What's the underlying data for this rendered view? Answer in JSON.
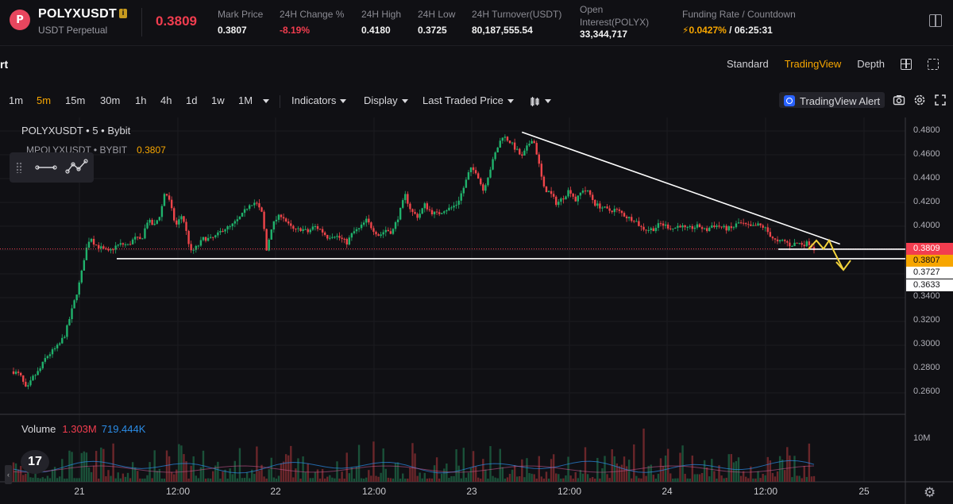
{
  "ticker": {
    "logo_letter": "P",
    "symbol": "POLYXUSDT",
    "contract_type": "USDT Perpetual",
    "last_price": "0.3809",
    "stats": [
      {
        "label": "Mark Price",
        "value": "0.3807",
        "style": "white"
      },
      {
        "label": "24H Change %",
        "value": "-8.19%",
        "style": "red"
      },
      {
        "label": "24H High",
        "value": "0.4180",
        "style": "white"
      },
      {
        "label": "24H Low",
        "value": "0.3725",
        "style": "white"
      },
      {
        "label": "24H Turnover(USDT)",
        "value": "80,187,555.54",
        "style": "white"
      }
    ],
    "open_interest_label_1": "Open",
    "open_interest_label_2": "Interest(POLYX)",
    "open_interest_value": "33,344,717",
    "funding_label": "Funding Rate / Countdown",
    "funding_rate": "0.0427%",
    "funding_countdown": "/ 06:25:31"
  },
  "chart_header": {
    "title_partial": "rt",
    "tabs": [
      "Standard",
      "TradingView",
      "Depth"
    ],
    "active_tab": "TradingView"
  },
  "toolbar": {
    "timeframes": [
      "1m",
      "5m",
      "15m",
      "30m",
      "1h",
      "4h",
      "1d",
      "1w",
      "1M"
    ],
    "active_timeframe": "5m",
    "indicators": "Indicators",
    "display": "Display",
    "price_source": "Last Traded Price",
    "alert_label": "TradingView Alert"
  },
  "legend": {
    "line1": "POLYXUSDT • 5 • Bybit",
    "line2_symbol": "MPOLYXUSDT • BYBIT",
    "line2_price": "0.3807"
  },
  "volume": {
    "label": "Volume",
    "value_red": "1.303M",
    "value_blue": "719.444K",
    "axis_label": "10M"
  },
  "price_axis": {
    "ticks": [
      "0.4800",
      "0.4600",
      "0.4400",
      "0.4200",
      "0.4000",
      "0.3400",
      "0.3200",
      "0.3000",
      "0.2800",
      "0.2600"
    ],
    "tags": [
      {
        "label": "0.3809",
        "bg": "#f23d4f",
        "fg": "#ffffff"
      },
      {
        "label": "0.3807",
        "bg": "#f7a600",
        "fg": "#101014"
      },
      {
        "label": "0.3727",
        "bg": "#ffffff",
        "fg": "#101014"
      },
      {
        "label": "0.3633",
        "bg": "#ffffff",
        "fg": "#101014"
      }
    ]
  },
  "time_axis": {
    "ticks": [
      "21",
      "12:00",
      "22",
      "12:00",
      "23",
      "12:00",
      "24",
      "12:00",
      "25"
    ]
  },
  "chart_data": {
    "type": "candlestick",
    "series": [
      {
        "name": "POLYXUSDT",
        "interval": "5",
        "exchange": "Bybit"
      }
    ],
    "ylim": [
      0.25,
      0.49
    ],
    "x_range": [
      "20",
      "25"
    ],
    "path": [
      [
        0.0,
        0.278
      ],
      [
        0.03,
        0.275
      ],
      [
        0.06,
        0.262
      ],
      [
        0.09,
        0.273
      ],
      [
        0.12,
        0.279
      ],
      [
        0.15,
        0.29
      ],
      [
        0.18,
        0.295
      ],
      [
        0.21,
        0.3
      ],
      [
        0.24,
        0.31
      ],
      [
        0.28,
        0.336
      ],
      [
        0.31,
        0.356
      ],
      [
        0.33,
        0.377
      ],
      [
        0.355,
        0.392
      ],
      [
        0.375,
        0.385
      ],
      [
        0.41,
        0.381
      ],
      [
        0.44,
        0.378
      ],
      [
        0.47,
        0.383
      ],
      [
        0.5,
        0.385
      ],
      [
        0.53,
        0.384
      ],
      [
        0.56,
        0.39
      ],
      [
        0.59,
        0.388
      ],
      [
        0.62,
        0.405
      ],
      [
        0.65,
        0.4
      ],
      [
        0.68,
        0.411
      ],
      [
        0.7,
        0.43
      ],
      [
        0.72,
        0.421
      ],
      [
        0.75,
        0.4
      ],
      [
        0.78,
        0.41
      ],
      [
        0.8,
        0.394
      ],
      [
        0.82,
        0.378
      ],
      [
        0.85,
        0.383
      ],
      [
        0.88,
        0.39
      ],
      [
        0.91,
        0.389
      ],
      [
        0.94,
        0.392
      ],
      [
        0.97,
        0.398
      ],
      [
        1.0,
        0.399
      ],
      [
        1.03,
        0.404
      ],
      [
        1.06,
        0.41
      ],
      [
        1.09,
        0.419
      ],
      [
        1.12,
        0.42
      ],
      [
        1.15,
        0.41
      ],
      [
        1.17,
        0.379
      ],
      [
        1.19,
        0.398
      ],
      [
        1.21,
        0.405
      ],
      [
        1.24,
        0.41
      ],
      [
        1.27,
        0.401
      ],
      [
        1.3,
        0.396
      ],
      [
        1.33,
        0.398
      ],
      [
        1.36,
        0.395
      ],
      [
        1.39,
        0.4
      ],
      [
        1.42,
        0.397
      ],
      [
        1.45,
        0.391
      ],
      [
        1.48,
        0.393
      ],
      [
        1.51,
        0.39
      ],
      [
        1.54,
        0.386
      ],
      [
        1.57,
        0.395
      ],
      [
        1.6,
        0.398
      ],
      [
        1.63,
        0.405
      ],
      [
        1.66,
        0.398
      ],
      [
        1.69,
        0.392
      ],
      [
        1.72,
        0.397
      ],
      [
        1.75,
        0.395
      ],
      [
        1.78,
        0.409
      ],
      [
        1.81,
        0.426
      ],
      [
        1.84,
        0.412
      ],
      [
        1.87,
        0.408
      ],
      [
        1.9,
        0.418
      ],
      [
        1.93,
        0.412
      ],
      [
        1.96,
        0.41
      ],
      [
        1.99,
        0.414
      ],
      [
        2.02,
        0.415
      ],
      [
        2.05,
        0.419
      ],
      [
        2.08,
        0.432
      ],
      [
        2.11,
        0.448
      ],
      [
        2.14,
        0.446
      ],
      [
        2.17,
        0.43
      ],
      [
        2.2,
        0.446
      ],
      [
        2.23,
        0.463
      ],
      [
        2.26,
        0.476
      ],
      [
        2.29,
        0.472
      ],
      [
        2.32,
        0.465
      ],
      [
        2.35,
        0.458
      ],
      [
        2.37,
        0.465
      ],
      [
        2.4,
        0.475
      ],
      [
        2.42,
        0.46
      ],
      [
        2.45,
        0.432
      ],
      [
        2.48,
        0.428
      ],
      [
        2.51,
        0.419
      ],
      [
        2.54,
        0.424
      ],
      [
        2.57,
        0.431
      ],
      [
        2.6,
        0.421
      ],
      [
        2.63,
        0.431
      ],
      [
        2.66,
        0.428
      ],
      [
        2.69,
        0.418
      ],
      [
        2.72,
        0.416
      ],
      [
        2.75,
        0.413
      ],
      [
        2.78,
        0.414
      ],
      [
        2.81,
        0.411
      ],
      [
        2.84,
        0.407
      ],
      [
        2.87,
        0.406
      ],
      [
        2.9,
        0.399
      ],
      [
        2.93,
        0.397
      ],
      [
        2.96,
        0.398
      ],
      [
        2.99,
        0.402
      ],
      [
        3.02,
        0.4
      ],
      [
        3.05,
        0.398
      ],
      [
        3.08,
        0.401
      ],
      [
        3.11,
        0.397
      ],
      [
        3.14,
        0.399
      ],
      [
        3.17,
        0.4
      ],
      [
        3.2,
        0.396
      ],
      [
        3.23,
        0.401
      ],
      [
        3.26,
        0.4
      ],
      [
        3.29,
        0.398
      ],
      [
        3.32,
        0.398
      ],
      [
        3.35,
        0.403
      ],
      [
        3.38,
        0.401
      ],
      [
        3.41,
        0.399
      ],
      [
        3.44,
        0.401
      ],
      [
        3.47,
        0.399
      ],
      [
        3.5,
        0.392
      ],
      [
        3.53,
        0.386
      ],
      [
        3.56,
        0.388
      ],
      [
        3.59,
        0.384
      ],
      [
        3.62,
        0.386
      ],
      [
        3.65,
        0.385
      ],
      [
        3.68,
        0.386
      ],
      [
        3.7,
        0.381
      ]
    ],
    "annotations": {
      "trendline": [
        [
          2.35,
          0.479
        ],
        [
          3.82,
          0.385
        ]
      ],
      "support_lines": [
        0.3727,
        0.3807
      ],
      "projection_arrow": [
        [
          3.57,
          0.3807
        ],
        [
          3.62,
          0.388
        ],
        [
          3.65,
          0.381
        ],
        [
          3.68,
          0.388
        ],
        [
          3.72,
          0.379
        ],
        [
          3.76,
          0.3633
        ]
      ],
      "last_price_line": 0.3809
    }
  }
}
